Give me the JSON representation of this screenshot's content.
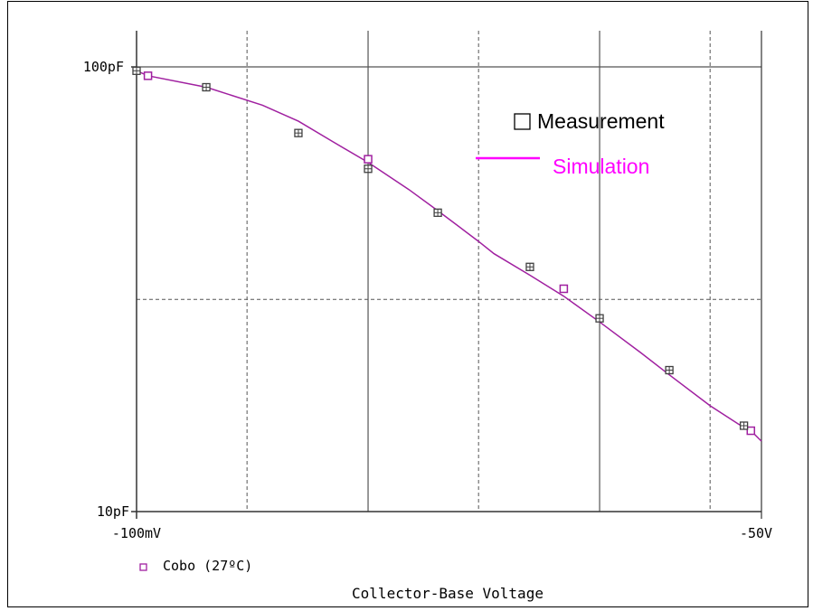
{
  "chart_data": {
    "type": "line",
    "title": "",
    "xlabel": "Collector-Base Voltage",
    "ylabel": "",
    "x_scale": "log",
    "y_scale": "log",
    "x_unit": "V",
    "y_unit": "F",
    "xlim": [
      0.1,
      50
    ],
    "ylim": [
      1e-11,
      1e-10
    ],
    "x_tick_labels": [
      "-100mV",
      "-50V"
    ],
    "y_tick_labels": [
      "100pF",
      "10pF"
    ],
    "grid": true,
    "legend_position": "top-right",
    "trace_legend": {
      "label": "Cobo (27ºC)",
      "color": "#a020a0"
    },
    "series": [
      {
        "name": "Simulation",
        "style": "line",
        "color": "#a020a0",
        "x": [
          0.1,
          0.112,
          0.2,
          0.35,
          0.5,
          0.7,
          1.0,
          1.5,
          2.0,
          3.0,
          3.5,
          5.0,
          7.0,
          10.0,
          15.0,
          20.0,
          30.0,
          40.0,
          45.0,
          50.0
        ],
        "y": [
          9.8e-11,
          9.55e-11,
          9e-11,
          8.2e-11,
          7.55e-11,
          6.8e-11,
          6.1e-11,
          5.3e-11,
          4.75e-11,
          4.05e-11,
          3.8e-11,
          3.4e-11,
          3.05e-11,
          2.67e-11,
          2.28e-11,
          2.03e-11,
          1.73e-11,
          1.57e-11,
          1.52e-11,
          1.44e-11
        ],
        "markers_x": [
          0.112,
          1.0,
          7.0,
          45.0
        ],
        "markers_y": [
          9.55e-11,
          6.2e-11,
          3.17e-11,
          1.52e-11
        ]
      },
      {
        "name": "Measurement",
        "style": "markers",
        "color": "#404040",
        "x": [
          0.1,
          0.2,
          0.5,
          1.0,
          2.0,
          5.0,
          10.0,
          20.0,
          42.0
        ],
        "y": [
          9.8e-11,
          9e-11,
          7.1e-11,
          5.9e-11,
          4.7e-11,
          3.55e-11,
          2.72e-11,
          2.08e-11,
          1.56e-11
        ]
      }
    ]
  }
}
